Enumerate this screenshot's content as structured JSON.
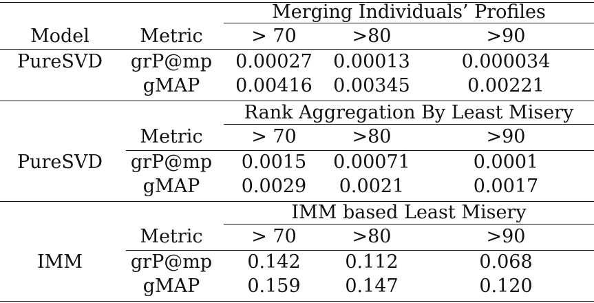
{
  "header": {
    "model_label": "Model",
    "metric_label": "Metric"
  },
  "sections": [
    {
      "title": "Merging Individuals’ Profiles",
      "model": "PureSVD",
      "thresholds": [
        "> 70",
        ">80",
        ">90"
      ],
      "rows": [
        {
          "metric": "grP@mp",
          "values": [
            "0.00027",
            "0.00013",
            "0.000034"
          ]
        },
        {
          "metric": "gMAP",
          "values": [
            "0.00416",
            "0.00345",
            "0.00221"
          ]
        }
      ]
    },
    {
      "title": "Rank Aggregation By Least Misery",
      "model": "PureSVD",
      "metric_label": "Metric",
      "thresholds": [
        "> 70",
        ">80",
        ">90"
      ],
      "rows": [
        {
          "metric": "grP@mp",
          "values": [
            "0.0015",
            "0.00071",
            "0.0001"
          ]
        },
        {
          "metric": "gMAP",
          "values": [
            "0.0029",
            "0.0021",
            "0.0017"
          ]
        }
      ]
    },
    {
      "title": "IMM based Least Misery",
      "model": "IMM",
      "metric_label": "Metric",
      "thresholds": [
        "> 70",
        ">80",
        ">90"
      ],
      "rows": [
        {
          "metric": "grP@mp",
          "values": [
            "0.142",
            "0.112",
            "0.068"
          ]
        },
        {
          "metric": "gMAP",
          "values": [
            "0.159",
            "0.147",
            "0.120"
          ]
        }
      ]
    }
  ]
}
